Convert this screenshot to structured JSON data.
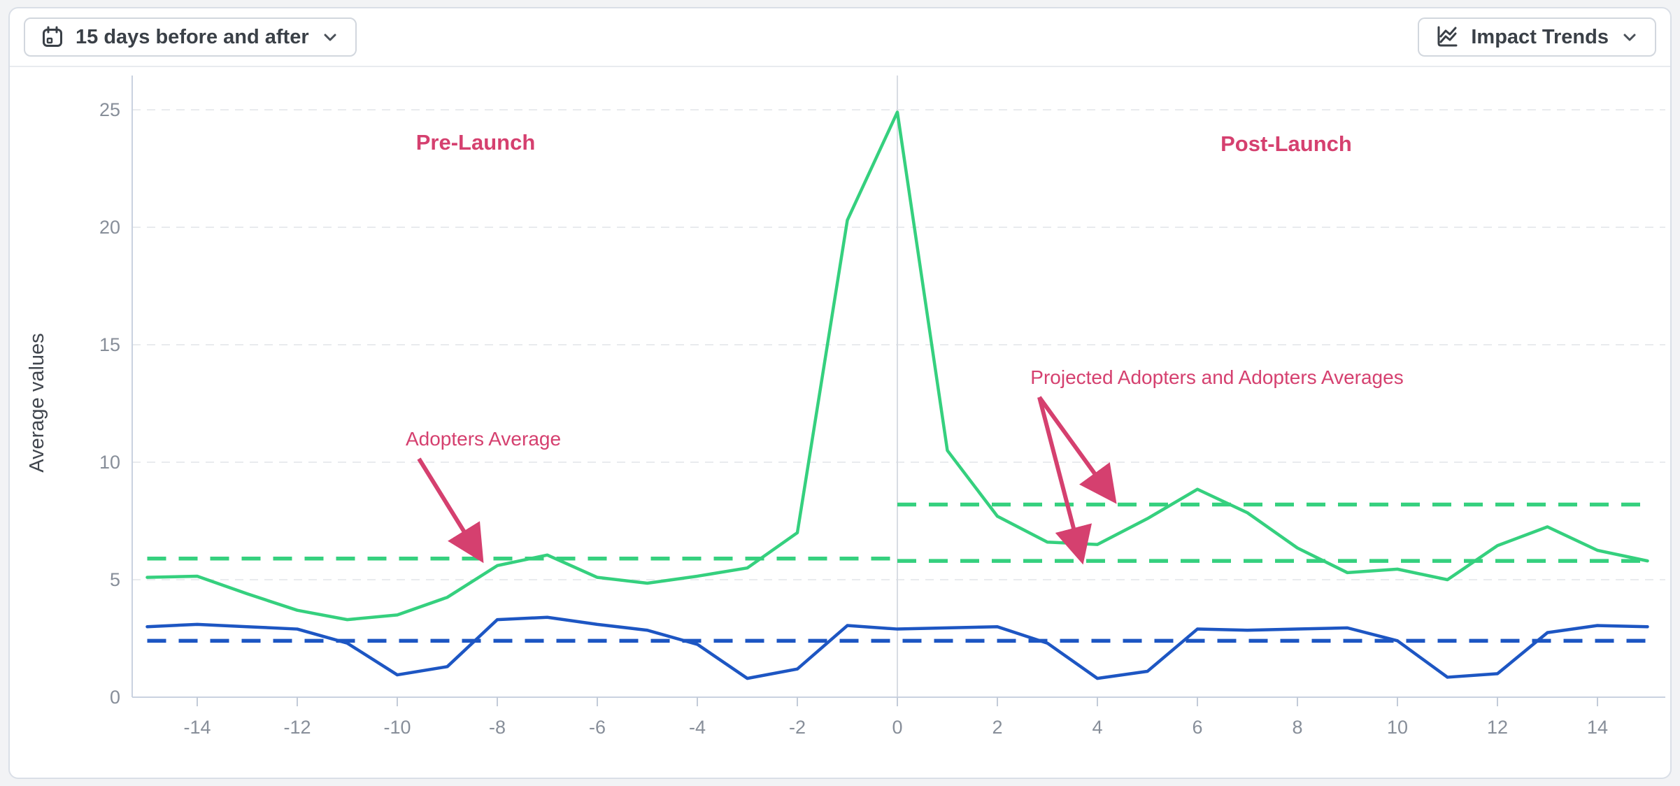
{
  "toolbar": {
    "date_range_button": {
      "label": "15 days before and after"
    },
    "trends_button": {
      "label": "Impact Trends"
    }
  },
  "chart": {
    "y_axis_title": "Average values",
    "annotations": {
      "pre_label": "Pre-Launch",
      "post_label": "Post-Launch",
      "adopters_avg_label": "Adopters Average",
      "projected_avg_label": "Projected Adopters and Adopters Averages"
    },
    "colors": {
      "green": "#35d07e",
      "blue": "#1d56c3",
      "pink": "#d5406f",
      "axis_text": "#878e99",
      "axis_line": "#c9d2e0"
    }
  },
  "chart_data": {
    "type": "line",
    "title": "",
    "xlabel": "",
    "ylabel": "Average values",
    "x": [
      -15,
      -14,
      -13,
      -12,
      -11,
      -10,
      -9,
      -8,
      -7,
      -6,
      -5,
      -4,
      -3,
      -2,
      -1,
      0,
      1,
      2,
      3,
      4,
      5,
      6,
      7,
      8,
      9,
      10,
      11,
      12,
      13,
      14,
      15
    ],
    "x_tick_labels": [
      -14,
      -12,
      -10,
      -8,
      -6,
      -4,
      -2,
      0,
      2,
      4,
      6,
      8,
      10,
      12,
      14
    ],
    "y_ticks": [
      0,
      5,
      10,
      15,
      20,
      25
    ],
    "ylim": [
      0,
      25.5
    ],
    "grid": "horizontal-dashed",
    "legend": "none",
    "series": [
      {
        "name": "Adopters",
        "color": "#35d07e",
        "style": "solid",
        "values": [
          5.1,
          5.15,
          4.4,
          3.7,
          3.3,
          3.5,
          4.25,
          5.6,
          6.05,
          5.1,
          4.85,
          5.15,
          5.5,
          7.0,
          20.3,
          24.9,
          10.5,
          7.7,
          6.6,
          6.5,
          7.6,
          8.85,
          7.85,
          6.35,
          5.3,
          5.45,
          5.0,
          6.45,
          7.25,
          6.25,
          5.8
        ]
      },
      {
        "name": "Projected Adopters",
        "color": "#1d56c3",
        "style": "solid",
        "values": [
          3.0,
          3.1,
          3.0,
          2.9,
          2.3,
          0.95,
          1.3,
          3.3,
          3.4,
          3.1,
          2.85,
          2.25,
          0.8,
          1.2,
          3.05,
          2.9,
          2.95,
          3.0,
          2.3,
          0.8,
          1.1,
          2.9,
          2.85,
          2.9,
          2.95,
          2.4,
          0.85,
          1.0,
          2.75,
          3.05,
          3.0
        ]
      }
    ],
    "reference_lines": [
      {
        "name": "Adopters Average (pre-launch)",
        "color": "#35d07e",
        "style": "dashed",
        "value": 5.9,
        "x_range": [
          -15,
          0
        ]
      },
      {
        "name": "Projected Adopters Average (post-launch)",
        "color": "#35d07e",
        "style": "dashed",
        "value": 8.2,
        "x_range": [
          0,
          15
        ]
      },
      {
        "name": "Adopters Average (post-launch)",
        "color": "#35d07e",
        "style": "dashed",
        "value": 5.8,
        "x_range": [
          0,
          15
        ]
      },
      {
        "name": "Projected Adopters Average",
        "color": "#1d56c3",
        "style": "dashed",
        "value": 2.4,
        "x_range": [
          -15,
          15
        ]
      }
    ],
    "launch_divider_x": 0
  }
}
